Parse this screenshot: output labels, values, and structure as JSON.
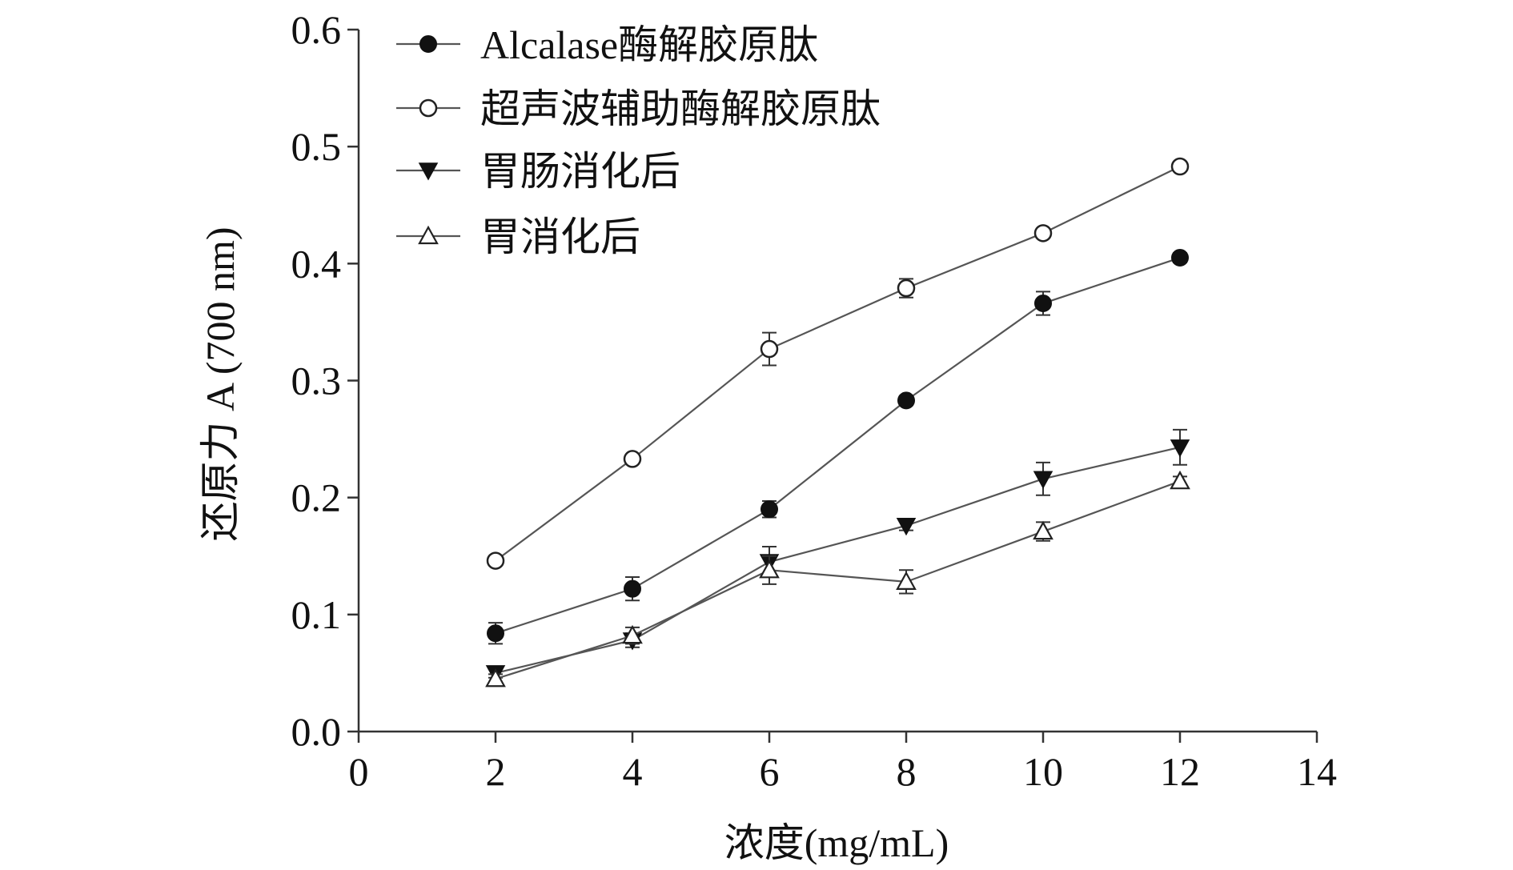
{
  "chart_data": {
    "type": "line",
    "xlabel": "浓度(mg/mL)",
    "ylabel": "还原力 A (700 nm)",
    "xlim": [
      0,
      14
    ],
    "ylim": [
      0.0,
      0.6
    ],
    "xticks": [
      0,
      2,
      4,
      6,
      8,
      10,
      12,
      14
    ],
    "yticks": [
      0.0,
      0.1,
      0.2,
      0.3,
      0.4,
      0.5,
      0.6
    ],
    "ytick_labels": [
      "0.0",
      "0.1",
      "0.2",
      "0.3",
      "0.4",
      "0.5",
      "0.6"
    ],
    "grid": false,
    "legend_position": "top-left",
    "x": [
      2,
      4,
      6,
      8,
      10,
      12
    ],
    "series": [
      {
        "name": "Alcalase酶解胶原肽",
        "marker": "filled-circle",
        "values": [
          0.084,
          0.122,
          0.19,
          0.283,
          0.366,
          0.405
        ],
        "errors": [
          0.009,
          0.01,
          0.007,
          0.004,
          0.01,
          0.004
        ]
      },
      {
        "name": "超声波辅助酶解胶原肽",
        "marker": "open-circle",
        "values": [
          0.146,
          0.233,
          0.327,
          0.379,
          0.426,
          0.483
        ],
        "errors": [
          0.004,
          0.004,
          0.014,
          0.008,
          0.004,
          0.004
        ]
      },
      {
        "name": "胃肠消化后",
        "marker": "filled-triangle-down",
        "values": [
          0.05,
          0.078,
          0.145,
          0.176,
          0.216,
          0.243
        ],
        "errors": [
          0.004,
          0.006,
          0.013,
          0.004,
          0.014,
          0.015
        ]
      },
      {
        "name": "胃消化后",
        "marker": "open-triangle-up",
        "values": [
          0.045,
          0.082,
          0.138,
          0.128,
          0.171,
          0.214
        ],
        "errors": [
          0.004,
          0.007,
          0.012,
          0.01,
          0.008,
          0.004
        ]
      }
    ]
  }
}
